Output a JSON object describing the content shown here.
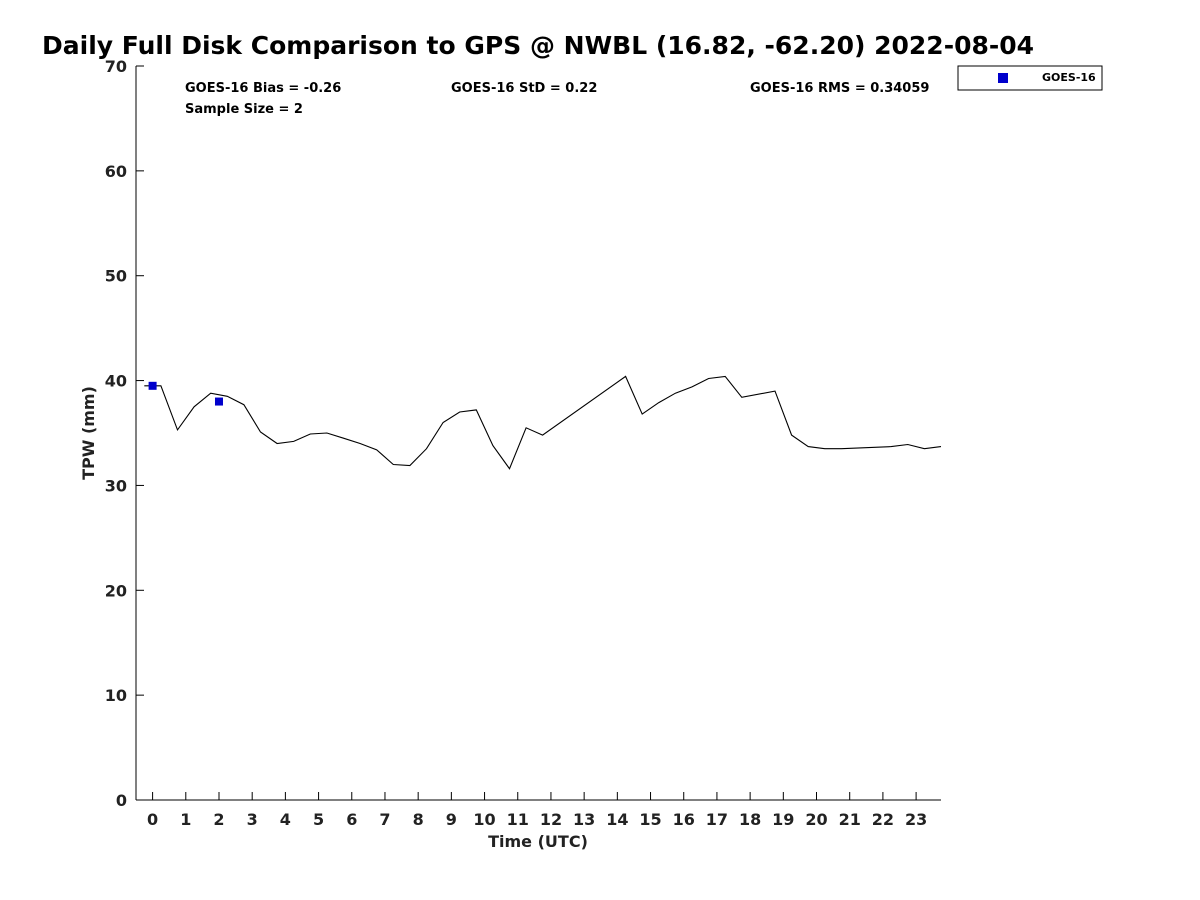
{
  "chart_data": {
    "type": "line",
    "title": "Daily Full Disk Comparison to GPS @ NWBL (16.82, -62.20) 2022-08-04",
    "xlabel": "Time (UTC)",
    "ylabel": "TPW (mm)",
    "xlim": [
      -0.5,
      23.75
    ],
    "ylim": [
      0,
      70
    ],
    "x_ticks": [
      0,
      1,
      2,
      3,
      4,
      5,
      6,
      7,
      8,
      9,
      10,
      11,
      12,
      13,
      14,
      15,
      16,
      17,
      18,
      19,
      20,
      21,
      22,
      23
    ],
    "y_ticks": [
      0,
      10,
      20,
      30,
      40,
      50,
      60,
      70
    ],
    "grid": false,
    "legend_position": "top-right-outside",
    "stats": {
      "bias": "GOES-16 Bias = -0.26",
      "std": "GOES-16 StD = 0.22",
      "rms": "GOES-16 RMS = 0.34059",
      "sample_size": "Sample Size = 2"
    },
    "gps": {
      "color": "#000000",
      "x": [
        -0.25,
        0.25,
        0.75,
        1.25,
        1.75,
        2.25,
        2.75,
        3.25,
        3.75,
        4.25,
        4.75,
        5.25,
        5.75,
        6.25,
        6.75,
        7.25,
        7.75,
        8.25,
        8.75,
        9.25,
        9.75,
        10.25,
        10.75,
        11.25,
        11.75,
        14.25,
        14.75,
        15.25,
        15.75,
        16.25,
        16.75,
        17.25,
        17.75,
        18.75,
        19.25,
        19.75,
        20.25,
        20.75,
        22.25,
        22.75,
        23.25,
        23.75
      ],
      "y": [
        39.5,
        39.5,
        35.3,
        37.5,
        38.8,
        38.5,
        37.7,
        35.1,
        34.0,
        34.2,
        34.9,
        35.0,
        34.5,
        34.0,
        33.4,
        32.0,
        31.9,
        33.5,
        36.0,
        37.0,
        37.2,
        33.8,
        31.6,
        35.5,
        34.8,
        40.4,
        36.8,
        37.9,
        38.8,
        39.4,
        40.2,
        40.4,
        38.4,
        39.0,
        34.8,
        33.7,
        33.5,
        33.5,
        33.7,
        33.9,
        33.5,
        33.7
      ]
    },
    "series": [
      {
        "name": "GOES-16",
        "color": "#0000cc",
        "marker": "square",
        "x": [
          0.0,
          2.0
        ],
        "y": [
          39.5,
          38.0
        ]
      }
    ]
  }
}
